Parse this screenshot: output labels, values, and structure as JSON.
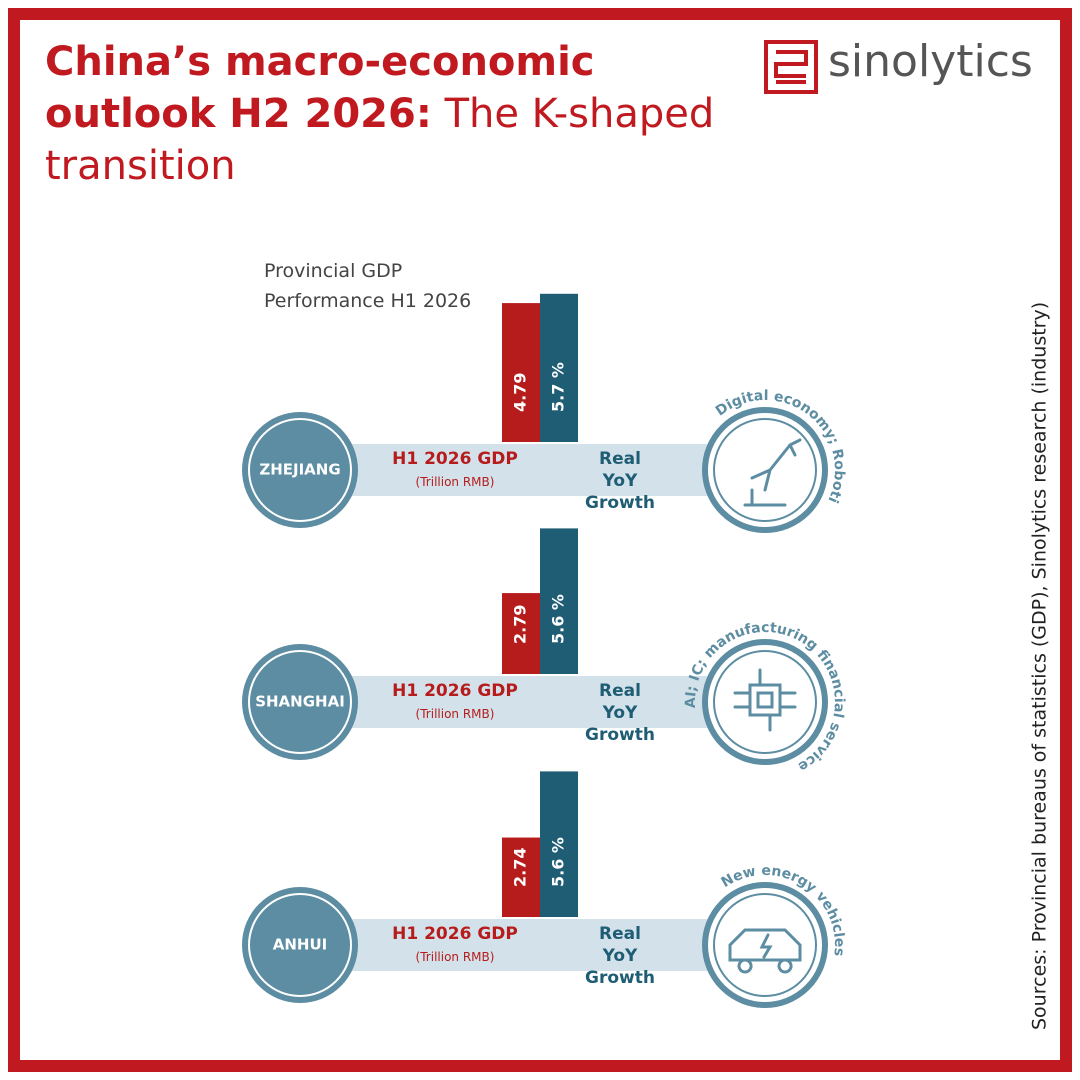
{
  "header": {
    "title_bold": "China’s macro-economic outlook H2 2026:",
    "title_light": "The K-shaped transition",
    "brand": "sinolytics"
  },
  "chart_data": {
    "type": "bar",
    "title": "Provincial GDP Performance H1 2026",
    "categories": [
      "ZHEJIANG",
      "SHANGHAI",
      "ANHUI"
    ],
    "series": [
      {
        "name": "H1 2026 GDP",
        "unit": "(Trillion RMB)",
        "color": "#b71c1c",
        "values": [
          4.79,
          2.79,
          2.74
        ]
      },
      {
        "name": "Real YoY Growth",
        "color": "#1e5d74",
        "values": [
          5.7,
          5.6,
          5.6
        ],
        "value_labels": [
          "5.7 %",
          "5.6 %",
          "5.6 %"
        ]
      }
    ],
    "sectors": [
      "Digital economy; Robotics",
      "AI; IC; manufacturing financial services",
      "New energy vehicles"
    ]
  },
  "source": "Sources: Provincial bureaus of statistics (GDP), Sinolytics research (industry)"
}
